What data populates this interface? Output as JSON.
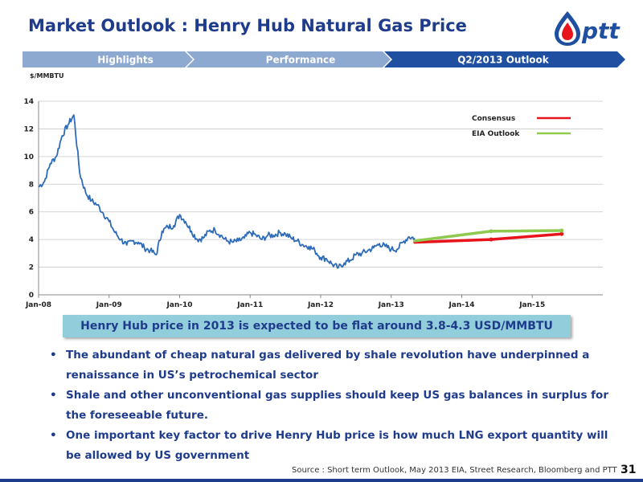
{
  "slide": {
    "title": "Market Outlook : Henry Hub Natural Gas Price",
    "logo_text": "ptt",
    "callout": "Henry Hub price in 2013 is expected to be flat around 3.8-4.3 USD/MMBTU",
    "bullets": [
      "The abundant of cheap natural gas delivered by shale revolution have underpinned a renaissance in US’s petrochemical sector",
      "Shale and other unconventional gas supplies should keep US gas balances in surplus for the foreseeable future.",
      "One important key factor to drive Henry Hub price is how much LNG export quantity will be allowed by US government"
    ],
    "source": "Source : Short term Outlook, May 2013 EIA, Street Research, Bloomberg and PTT",
    "page_number": "31"
  },
  "nav": {
    "tabs": [
      {
        "label": "Highlights",
        "active": false
      },
      {
        "label": "Performance",
        "active": false
      },
      {
        "label": "Q2/2013 Outlook",
        "active": true
      }
    ]
  },
  "colors": {
    "title": "#1f3c8c",
    "tab_inactive": "#8ea9d0",
    "tab_active": "#1f4fa0",
    "historical": "#2e6bb8",
    "consensus": "#e8141b",
    "eia": "#8fca4f",
    "callout_bg": "#92cddc"
  },
  "chart_data": {
    "type": "line",
    "title": "",
    "ylabel": "$/MMBTU",
    "xlabel": "",
    "ylim": [
      0,
      14
    ],
    "yticks": [
      0,
      2,
      4,
      6,
      8,
      10,
      12,
      14
    ],
    "xlim": [
      "2008-01",
      "2015-12"
    ],
    "xticks": [
      "Jan-08",
      "Jan-09",
      "Jan-10",
      "Jan-11",
      "Jan-12",
      "Jan-13",
      "Jan-14",
      "Jan-15"
    ],
    "grid": true,
    "legend": "right",
    "series": [
      {
        "name": "",
        "color": "#2e6bb8",
        "x": [
          "2008-01",
          "2008-02",
          "2008-03",
          "2008-04",
          "2008-05",
          "2008-06",
          "2008-07",
          "2008-08",
          "2008-09",
          "2008-10",
          "2008-11",
          "2008-12",
          "2009-01",
          "2009-02",
          "2009-03",
          "2009-04",
          "2009-05",
          "2009-06",
          "2009-07",
          "2009-08",
          "2009-09",
          "2009-10",
          "2009-11",
          "2009-12",
          "2010-01",
          "2010-02",
          "2010-03",
          "2010-04",
          "2010-05",
          "2010-06",
          "2010-07",
          "2010-08",
          "2010-09",
          "2010-10",
          "2010-11",
          "2010-12",
          "2011-01",
          "2011-02",
          "2011-03",
          "2011-04",
          "2011-05",
          "2011-06",
          "2011-07",
          "2011-08",
          "2011-09",
          "2011-10",
          "2011-11",
          "2011-12",
          "2012-01",
          "2012-02",
          "2012-03",
          "2012-04",
          "2012-05",
          "2012-06",
          "2012-07",
          "2012-08",
          "2012-09",
          "2012-10",
          "2012-11",
          "2012-12",
          "2013-01",
          "2013-02",
          "2013-03",
          "2013-04",
          "2013-05"
        ],
        "values": [
          7.8,
          8.2,
          9.5,
          10.0,
          11.5,
          12.3,
          13.0,
          8.8,
          7.4,
          6.8,
          6.5,
          5.9,
          5.3,
          4.5,
          4.0,
          3.6,
          3.9,
          3.8,
          3.4,
          3.2,
          2.9,
          4.6,
          4.9,
          5.0,
          5.8,
          5.3,
          4.6,
          4.0,
          4.1,
          4.6,
          4.7,
          4.3,
          3.9,
          3.8,
          3.9,
          4.1,
          4.5,
          4.3,
          4.0,
          4.3,
          4.3,
          4.5,
          4.4,
          4.1,
          3.9,
          3.6,
          3.5,
          3.2,
          2.7,
          2.6,
          2.2,
          1.95,
          2.3,
          2.5,
          2.9,
          3.0,
          3.2,
          3.4,
          3.7,
          3.5,
          3.3,
          3.3,
          3.8,
          4.2,
          4.1
        ]
      },
      {
        "name": "Consensus",
        "color": "#e8141b",
        "x": [
          "2013-05",
          "2014-06",
          "2015-06"
        ],
        "values": [
          3.8,
          4.0,
          4.4
        ]
      },
      {
        "name": "EIA Outlook",
        "color": "#8fca4f",
        "x": [
          "2013-05",
          "2014-06",
          "2015-06"
        ],
        "values": [
          3.9,
          4.6,
          4.65
        ]
      }
    ]
  }
}
